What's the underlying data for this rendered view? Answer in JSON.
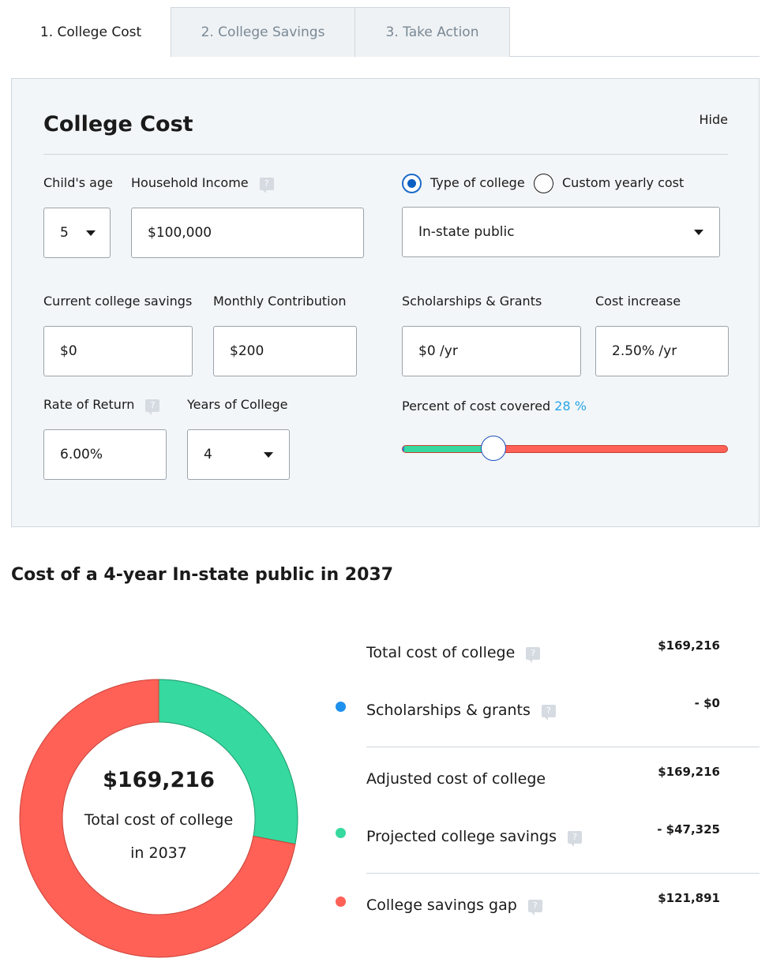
{
  "tabs": [
    {
      "label": "1. College Cost"
    },
    {
      "label": "2. College Savings"
    },
    {
      "label": "3. Take Action"
    }
  ],
  "panel": {
    "title": "College Cost",
    "hide_label": "Hide",
    "childs_age": {
      "label": "Child's age",
      "value": "5"
    },
    "household_income": {
      "label": "Household Income",
      "value": "$100,000"
    },
    "college_mode": {
      "option_type": "Type of college",
      "option_custom": "Custom yearly cost",
      "selected": "Type of college"
    },
    "college_type": {
      "value": "In-state public"
    },
    "current_savings": {
      "label": "Current college savings",
      "value": "$0"
    },
    "monthly_contribution": {
      "label": "Monthly Contribution",
      "value": "$200"
    },
    "scholarships": {
      "label": "Scholarships & Grants",
      "value": "$0 /yr"
    },
    "cost_increase": {
      "label": "Cost increase",
      "value": "2.50% /yr"
    },
    "rate_of_return": {
      "label": "Rate of Return",
      "value": "6.00%"
    },
    "years_of_college": {
      "label": "Years of College",
      "value": "4"
    },
    "percent_covered": {
      "label": "Percent of cost covered",
      "value": "28 %",
      "fraction": 0.28
    }
  },
  "results": {
    "title": "Cost of a 4-year In-state public in 2037",
    "donut": {
      "amount": "$169,216",
      "label_line1": "Total cost of college",
      "label_line2": "in 2037",
      "colors": {
        "savings": "#36d9a0",
        "gap": "#ff6157",
        "scholarships": "#1e90ee"
      }
    },
    "rows": [
      {
        "label": "Total cost of college",
        "value": "$169,216"
      },
      {
        "label": "Scholarships & grants",
        "value": "- $0"
      },
      {
        "label": "Adjusted cost of college",
        "value": "$169,216"
      },
      {
        "label": "Projected college savings",
        "value": "- $47,325"
      },
      {
        "label": "College savings gap",
        "value": "$121,891"
      }
    ]
  },
  "chart_data": {
    "type": "pie",
    "categories": [
      "Scholarships & grants",
      "Projected college savings",
      "College savings gap"
    ],
    "values": [
      0,
      47325,
      121891
    ]
  }
}
